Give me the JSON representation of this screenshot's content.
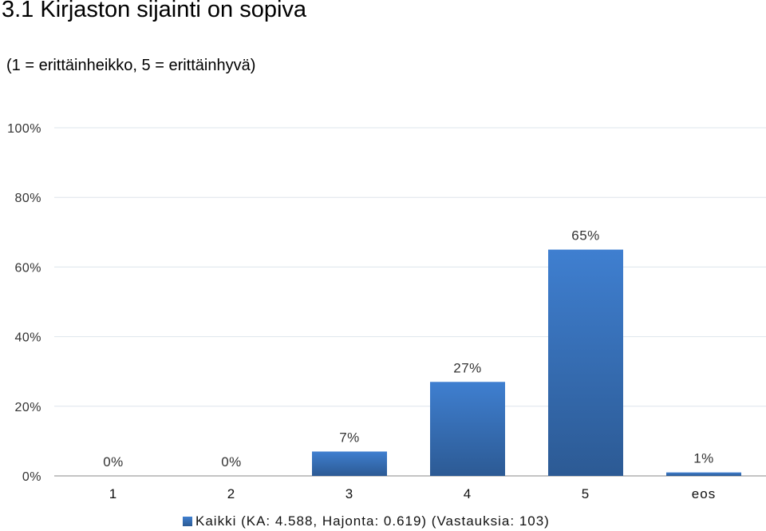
{
  "title": "3.1 Kirjaston sijainti on sopiva",
  "subtitle": "(1 = erittäinheikko, 5 = erittäinhyvä)",
  "colors": {
    "bar_top": "#3f7fd0",
    "bar_bottom": "#2c5a94",
    "grid": "#dde4ec",
    "axis": "#888888"
  },
  "chart_data": {
    "type": "bar",
    "categories": [
      "1",
      "2",
      "3",
      "4",
      "5",
      "eos"
    ],
    "values": [
      0,
      0,
      7,
      27,
      65,
      1
    ],
    "data_labels": [
      "0%",
      "0%",
      "7%",
      "27%",
      "65%",
      "1%"
    ],
    "ylim": [
      0,
      100
    ],
    "yticks": [
      0,
      20,
      40,
      60,
      80,
      100
    ],
    "ytick_labels": [
      "0%",
      "20%",
      "40%",
      "60%",
      "80%",
      "100%"
    ],
    "grid": true,
    "legend": "bottom",
    "series": [
      {
        "name": "Kaikki (KA: 4.588, Hajonta: 0.619) (Vastauksia: 103)",
        "values": [
          0,
          0,
          7,
          27,
          65,
          1
        ]
      }
    ]
  }
}
